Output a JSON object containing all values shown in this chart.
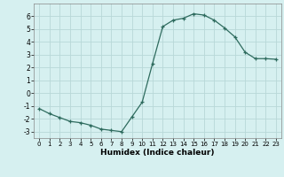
{
  "x": [
    0,
    1,
    2,
    3,
    4,
    5,
    6,
    7,
    8,
    9,
    10,
    11,
    12,
    13,
    14,
    15,
    16,
    17,
    18,
    19,
    20,
    21,
    22,
    23
  ],
  "y": [
    -1.2,
    -1.6,
    -1.9,
    -2.2,
    -2.3,
    -2.5,
    -2.8,
    -2.9,
    -3.0,
    -1.85,
    -0.7,
    2.3,
    5.2,
    5.7,
    5.85,
    6.2,
    6.1,
    5.7,
    5.1,
    4.4,
    3.2,
    2.7,
    2.7,
    2.65
  ],
  "xlabel": "Humidex (Indice chaleur)",
  "xlim": [
    -0.5,
    23.5
  ],
  "ylim": [
    -3.5,
    7.0
  ],
  "yticks": [
    -3,
    -2,
    -1,
    0,
    1,
    2,
    3,
    4,
    5,
    6
  ],
  "xticks": [
    0,
    1,
    2,
    3,
    4,
    5,
    6,
    7,
    8,
    9,
    10,
    11,
    12,
    13,
    14,
    15,
    16,
    17,
    18,
    19,
    20,
    21,
    22,
    23
  ],
  "line_color": "#2e6b5e",
  "marker": "+",
  "bg_color": "#d6f0f0",
  "grid_color": "#b8d8d8"
}
